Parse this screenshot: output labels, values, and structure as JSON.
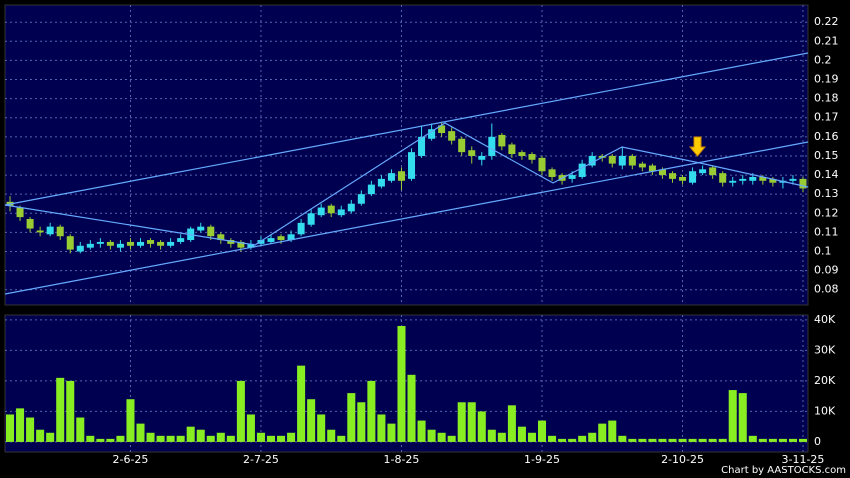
{
  "chart_data": [
    {
      "type": "candlestick",
      "categories": [
        null,
        null,
        null,
        null,
        null,
        null,
        null,
        null,
        null,
        null,
        null,
        null,
        "2-6-25",
        null,
        null,
        null,
        null,
        null,
        null,
        null,
        null,
        null,
        null,
        null,
        null,
        "2-7-25",
        null,
        null,
        null,
        null,
        null,
        null,
        null,
        null,
        null,
        null,
        null,
        null,
        null,
        "1-8-25",
        null,
        null,
        null,
        null,
        null,
        null,
        null,
        null,
        null,
        null,
        null,
        null,
        null,
        "1-9-25",
        null,
        null,
        null,
        null,
        null,
        null,
        null,
        null,
        null,
        null,
        null,
        null,
        null,
        "2-10-25",
        null,
        null,
        null,
        null,
        null,
        null,
        null,
        null,
        null,
        null,
        null,
        "3-11-25"
      ],
      "open": [
        0.126,
        0.123,
        0.117,
        0.111,
        0.109,
        0.113,
        0.108,
        0.1,
        0.102,
        0.104,
        0.105,
        0.102,
        0.105,
        0.103,
        0.106,
        0.105,
        0.103,
        0.105,
        0.106,
        0.111,
        0.113,
        0.109,
        0.106,
        0.105,
        0.102,
        0.104,
        0.105,
        0.108,
        0.106,
        0.109,
        0.114,
        0.119,
        0.124,
        0.119,
        0.121,
        0.125,
        0.13,
        0.134,
        0.137,
        0.142,
        0.138,
        0.15,
        0.159,
        0.166,
        0.163,
        0.159,
        0.153,
        0.148,
        0.15,
        0.161,
        0.156,
        0.152,
        0.151,
        0.149,
        0.143,
        0.14,
        0.138,
        0.139,
        0.145,
        0.15,
        0.15,
        0.145,
        0.15,
        0.146,
        0.145,
        0.143,
        0.141,
        0.139,
        0.136,
        0.141,
        0.144,
        0.141,
        0.136,
        0.137,
        0.137,
        0.139,
        0.138,
        0.136,
        0.137,
        0.138
      ],
      "high": [
        0.129,
        0.124,
        0.118,
        0.113,
        0.115,
        0.114,
        0.109,
        0.105,
        0.106,
        0.107,
        0.106,
        0.106,
        0.107,
        0.107,
        0.107,
        0.106,
        0.107,
        0.109,
        0.113,
        0.115,
        0.114,
        0.11,
        0.107,
        0.106,
        0.106,
        0.108,
        0.109,
        0.109,
        0.111,
        0.117,
        0.122,
        0.125,
        0.125,
        0.124,
        0.127,
        0.132,
        0.137,
        0.14,
        0.143,
        0.144,
        0.154,
        0.166,
        0.167,
        0.168,
        0.165,
        0.16,
        0.155,
        0.152,
        0.167,
        0.162,
        0.157,
        0.153,
        0.152,
        0.15,
        0.144,
        0.141,
        0.142,
        0.148,
        0.152,
        0.151,
        0.151,
        0.155,
        0.151,
        0.147,
        0.146,
        0.144,
        0.142,
        0.14,
        0.144,
        0.145,
        0.145,
        0.142,
        0.139,
        0.14,
        0.141,
        0.14,
        0.139,
        0.139,
        0.14,
        0.139
      ],
      "low": [
        0.121,
        0.116,
        0.11,
        0.108,
        0.108,
        0.106,
        0.099,
        0.099,
        0.101,
        0.102,
        0.101,
        0.1,
        0.101,
        0.102,
        0.102,
        0.101,
        0.102,
        0.104,
        0.105,
        0.11,
        0.106,
        0.104,
        0.102,
        0.1,
        0.101,
        0.103,
        0.104,
        0.104,
        0.105,
        0.108,
        0.113,
        0.118,
        0.118,
        0.118,
        0.12,
        0.124,
        0.129,
        0.133,
        0.136,
        0.132,
        0.137,
        0.149,
        0.158,
        0.16,
        0.156,
        0.15,
        0.146,
        0.145,
        0.148,
        0.153,
        0.149,
        0.148,
        0.146,
        0.14,
        0.137,
        0.135,
        0.136,
        0.138,
        0.144,
        0.147,
        0.144,
        0.143,
        0.143,
        0.142,
        0.14,
        0.138,
        0.136,
        0.135,
        0.135,
        0.14,
        0.138,
        0.134,
        0.134,
        0.135,
        0.135,
        0.135,
        0.134,
        0.133,
        0.135,
        0.131
      ],
      "close": [
        0.124,
        0.118,
        0.112,
        0.11,
        0.113,
        0.108,
        0.101,
        0.103,
        0.104,
        0.105,
        0.103,
        0.104,
        0.103,
        0.105,
        0.104,
        0.103,
        0.105,
        0.107,
        0.112,
        0.113,
        0.108,
        0.106,
        0.104,
        0.102,
        0.104,
        0.106,
        0.107,
        0.106,
        0.109,
        0.115,
        0.12,
        0.123,
        0.12,
        0.122,
        0.125,
        0.13,
        0.135,
        0.138,
        0.141,
        0.137,
        0.152,
        0.16,
        0.164,
        0.162,
        0.158,
        0.152,
        0.15,
        0.15,
        0.16,
        0.155,
        0.151,
        0.15,
        0.148,
        0.142,
        0.139,
        0.137,
        0.14,
        0.146,
        0.15,
        0.149,
        0.146,
        0.15,
        0.145,
        0.144,
        0.142,
        0.14,
        0.138,
        0.137,
        0.142,
        0.143,
        0.14,
        0.136,
        0.137,
        0.138,
        0.139,
        0.137,
        0.136,
        0.137,
        0.138,
        0.133
      ],
      "up_color": "#33ddee",
      "down_color": "#99cc33",
      "ylim": [
        0.072,
        0.229
      ],
      "yticks": [
        0.08,
        0.09,
        0.1,
        0.11,
        0.12,
        0.13,
        0.14,
        0.15,
        0.16,
        0.17,
        0.18,
        0.19,
        0.2,
        0.21,
        0.22
      ],
      "grid": true
    },
    {
      "type": "bar",
      "values": [
        9000,
        11000,
        8000,
        4000,
        3000,
        21000,
        20000,
        8000,
        2000,
        1000,
        1000,
        2000,
        14000,
        6000,
        3000,
        2000,
        2000,
        2000,
        5000,
        4000,
        2000,
        3000,
        2000,
        20000,
        9000,
        3000,
        2000,
        2000,
        3000,
        25000,
        14000,
        9000,
        4000,
        2000,
        16000,
        13000,
        20000,
        9000,
        6000,
        38000,
        22000,
        7000,
        4000,
        3000,
        2000,
        13000,
        13000,
        10000,
        4000,
        3000,
        12000,
        5000,
        3000,
        7000,
        2000,
        1000,
        1000,
        2000,
        3000,
        6000,
        7000,
        2000,
        1000,
        1000,
        1000,
        1000,
        1000,
        1000,
        1000,
        1000,
        1000,
        1000,
        17000,
        16000,
        2000,
        1000,
        1000,
        1000,
        1000,
        1000
      ],
      "color": "#88ee22",
      "ylim": [
        -3300,
        41600
      ],
      "yticks": [
        0,
        {
          "value": 10000,
          "label": "10K"
        },
        {
          "value": 20000,
          "label": "20K"
        },
        {
          "value": 30000,
          "label": "30K"
        },
        {
          "value": 40000,
          "label": "40K"
        }
      ],
      "grid": true
    }
  ],
  "credit": "Chart by AASTOCKS.com"
}
